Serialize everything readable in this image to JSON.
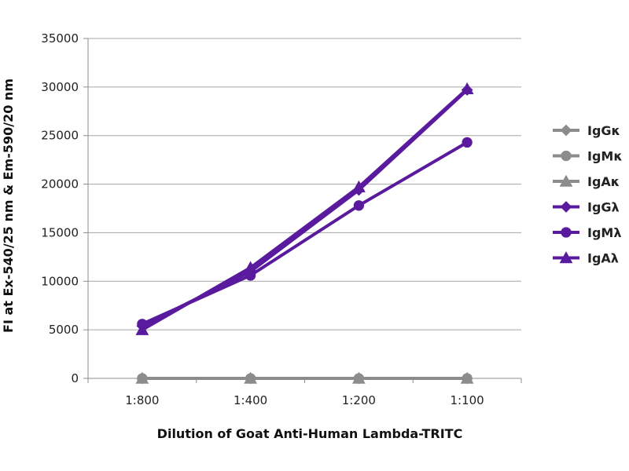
{
  "chart_data": {
    "type": "line",
    "title": "",
    "xlabel": "Dilution of Goat Anti-Human Lambda-TRITC",
    "ylabel": "FI at Ex-540/25 nm & Em-590/20 nm",
    "categories": [
      "1:800",
      "1:400",
      "1:200",
      "1:100"
    ],
    "ylim": [
      0,
      35000
    ],
    "yticks": [
      0,
      5000,
      10000,
      15000,
      20000,
      25000,
      30000,
      35000
    ],
    "ytick_labels": [
      "0",
      "5000",
      "10000",
      "15000",
      "20000",
      "25000",
      "30000",
      "35000"
    ],
    "grid": true,
    "legend_position": "right",
    "series": [
      {
        "name": "IgGκ",
        "values": [
          0,
          0,
          0,
          0
        ],
        "color": "#8c8c8c",
        "marker": "diamond"
      },
      {
        "name": "IgMκ",
        "values": [
          0,
          0,
          0,
          0
        ],
        "color": "#8c8c8c",
        "marker": "circle"
      },
      {
        "name": "IgAκ",
        "values": [
          0,
          0,
          0,
          0
        ],
        "color": "#8c8c8c",
        "marker": "triangle"
      },
      {
        "name": "IgGλ",
        "values": [
          5400,
          11000,
          19400,
          29700
        ],
        "color": "#5a1a9e",
        "marker": "diamond"
      },
      {
        "name": "IgMλ",
        "values": [
          5600,
          10600,
          17800,
          24300
        ],
        "color": "#5a1a9e",
        "marker": "circle"
      },
      {
        "name": "IgAλ",
        "values": [
          5000,
          11400,
          19700,
          29800
        ],
        "color": "#5a1a9e",
        "marker": "triangle"
      }
    ]
  }
}
